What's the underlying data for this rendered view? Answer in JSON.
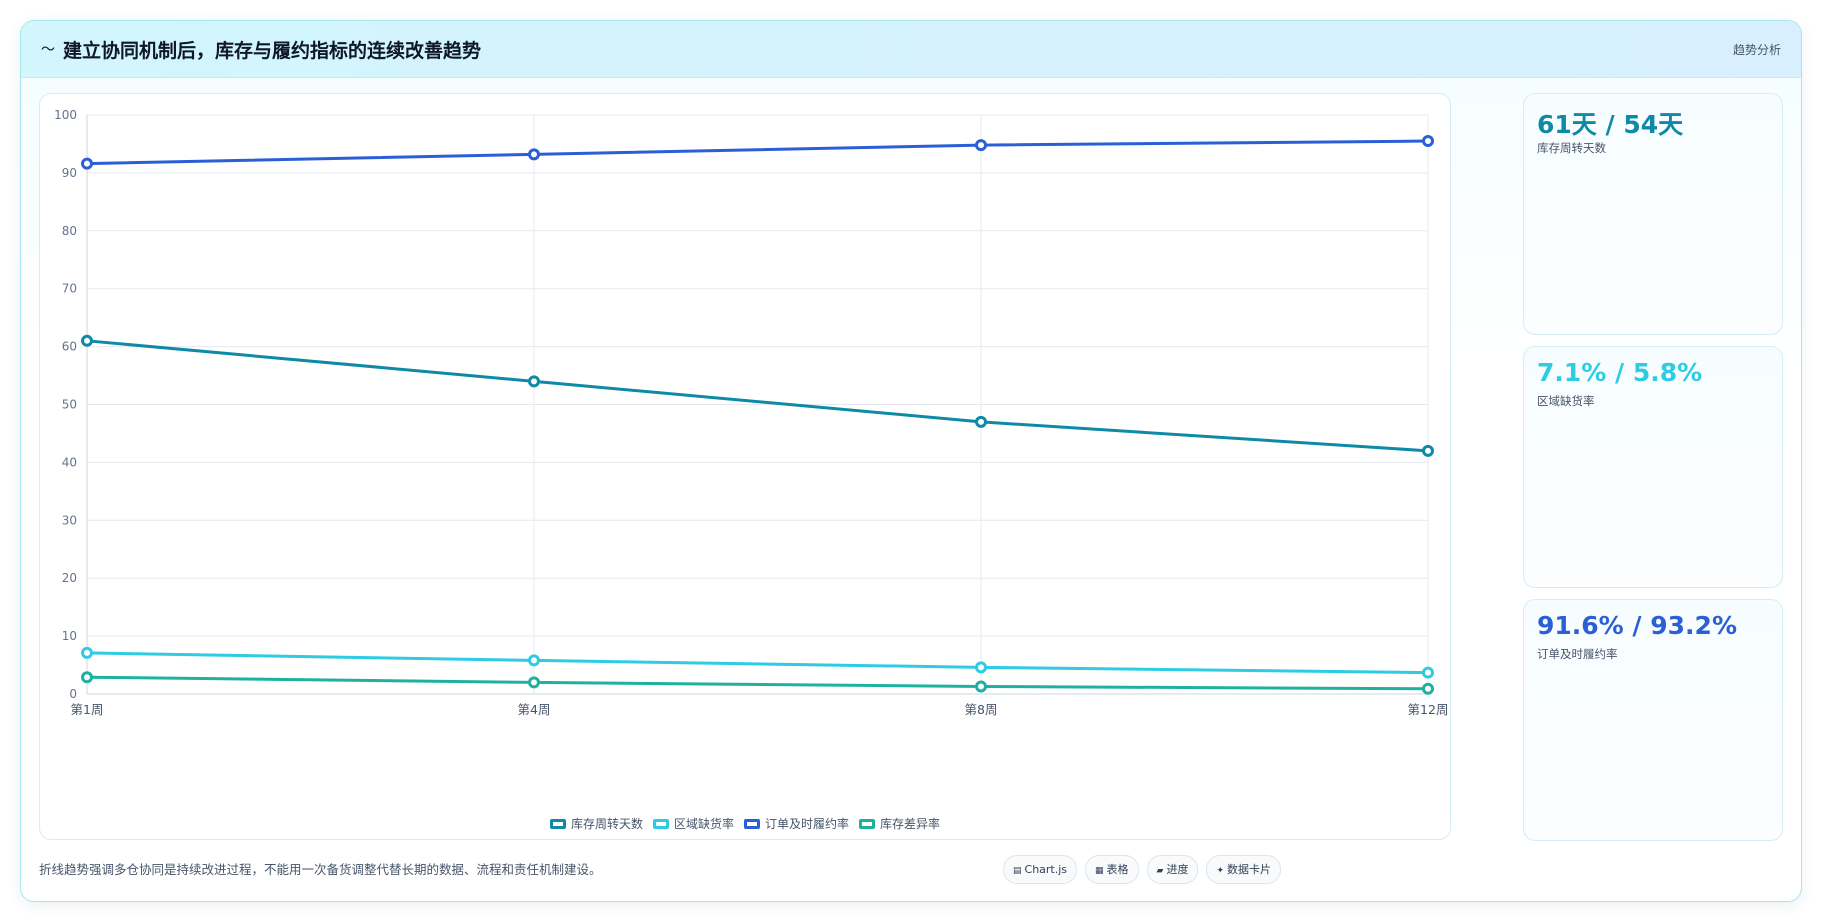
{
  "header": {
    "title_icon": "trend-line-icon",
    "title": "建立协同机制后，库存与履约指标的连续改善趋势",
    "tag": "趋势分析"
  },
  "chart_data": {
    "type": "line",
    "categories": [
      "第1周",
      "第4周",
      "第8周",
      "第12周"
    ],
    "series": [
      {
        "name": "库存周转天数",
        "values": [
          61,
          54,
          47,
          42
        ],
        "color": "#0e8aa6"
      },
      {
        "name": "区域缺货率",
        "values": [
          7.1,
          5.8,
          4.6,
          3.7
        ],
        "color": "#2ecbe3"
      },
      {
        "name": "订单及时履约率",
        "values": [
          91.6,
          93.2,
          94.8,
          95.5
        ],
        "color": "#2b5fd6"
      },
      {
        "name": "库存差异率",
        "values": [
          2.9,
          2.0,
          1.3,
          0.9
        ],
        "color": "#1fb1a0"
      }
    ],
    "ylim": [
      0,
      100
    ],
    "yticks": [
      "0",
      "10",
      "20",
      "30",
      "40",
      "50",
      "60",
      "70",
      "80",
      "90",
      "100"
    ],
    "grid": true,
    "legend_position": "bottom-center"
  },
  "kpis": [
    {
      "value": "61天 / 54天",
      "label": "库存周转天数",
      "color": "#0e8aa6"
    },
    {
      "value": "7.1% / 5.8%",
      "label": "区域缺货率",
      "color": "#2ecbe3"
    },
    {
      "value": "91.6% / 93.2%",
      "label": "订单及时履约率",
      "color": "#2b5fd6"
    }
  ],
  "footer": {
    "note": "折线趋势强调多仓协同是持续改进过程，不能用一次备货调整代替长期的数据、流程和责任机制建设。",
    "chips": [
      {
        "icon": "▤",
        "icon_name": "chart-icon",
        "label": "Chart.js"
      },
      {
        "icon": "▦",
        "icon_name": "table-icon",
        "label": "表格"
      },
      {
        "icon": "▰",
        "icon_name": "progress-icon",
        "label": "进度"
      },
      {
        "icon": "✦",
        "icon_name": "sparkle-icon",
        "label": "数据卡片"
      }
    ]
  }
}
